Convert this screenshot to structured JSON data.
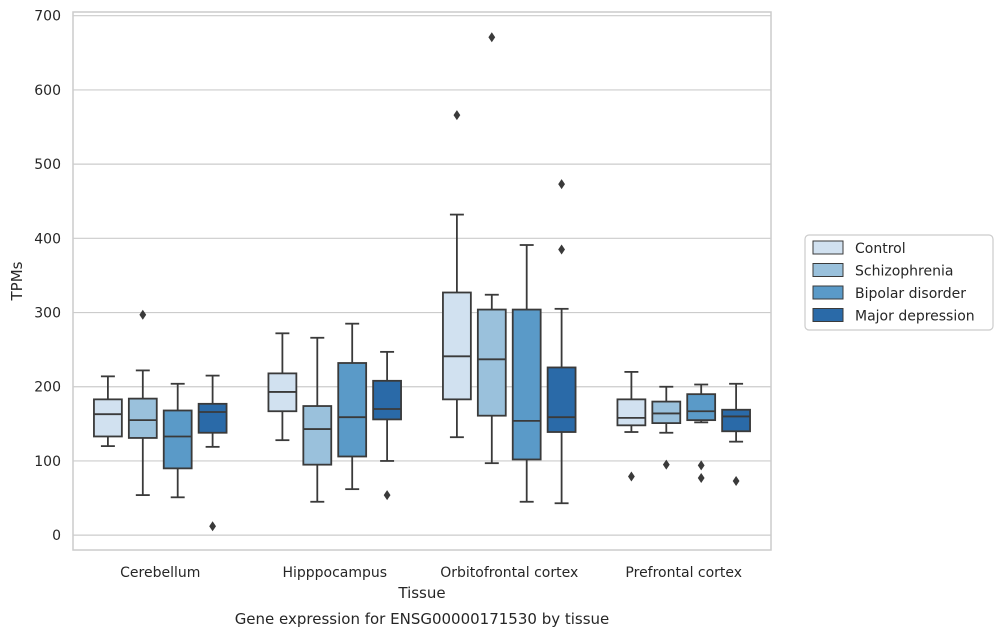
{
  "chart_data": {
    "type": "boxplot",
    "xlabel": "Tissue",
    "ylabel": "TPMs",
    "caption": "Gene expression for ENSG00000171530 by tissue",
    "categories": [
      "Cerebellum",
      "Hipppocampus",
      "Orbitofrontal cortex",
      "Prefrontal cortex"
    ],
    "ylim": [
      -20,
      705
    ],
    "yticks": [
      0,
      100,
      200,
      300,
      400,
      500,
      600,
      700
    ],
    "grid": true,
    "legend_position": "right-outside",
    "series": [
      {
        "name": "Control",
        "color": "#d1e1f0",
        "boxes": [
          {
            "whisker_low": 120,
            "q1": 133,
            "median": 163,
            "q3": 183,
            "whisker_high": 214,
            "outliers": []
          },
          {
            "whisker_low": 128,
            "q1": 167,
            "median": 193,
            "q3": 218,
            "whisker_high": 272,
            "outliers": []
          },
          {
            "whisker_low": 132,
            "q1": 183,
            "median": 241,
            "q3": 327,
            "whisker_high": 432,
            "outliers": [
              566
            ]
          },
          {
            "whisker_low": 139,
            "q1": 148,
            "median": 158,
            "q3": 183,
            "whisker_high": 220,
            "outliers": [
              79
            ]
          }
        ]
      },
      {
        "name": "Schizophrenia",
        "color": "#9ac1dc",
        "boxes": [
          {
            "whisker_low": 54,
            "q1": 131,
            "median": 155,
            "q3": 184,
            "whisker_high": 222,
            "outliers": [
              297
            ]
          },
          {
            "whisker_low": 45,
            "q1": 95,
            "median": 143,
            "q3": 174,
            "whisker_high": 266,
            "outliers": []
          },
          {
            "whisker_low": 97,
            "q1": 161,
            "median": 237,
            "q3": 304,
            "whisker_high": 324,
            "outliers": [
              671
            ]
          },
          {
            "whisker_low": 138,
            "q1": 151,
            "median": 164,
            "q3": 180,
            "whisker_high": 200,
            "outliers": [
              95
            ]
          }
        ]
      },
      {
        "name": "Bipolar disorder",
        "color": "#5a9ac8",
        "boxes": [
          {
            "whisker_low": 51,
            "q1": 90,
            "median": 133,
            "q3": 168,
            "whisker_high": 204,
            "outliers": []
          },
          {
            "whisker_low": 62,
            "q1": 106,
            "median": 159,
            "q3": 232,
            "whisker_high": 285,
            "outliers": []
          },
          {
            "whisker_low": 45,
            "q1": 102,
            "median": 154,
            "q3": 304,
            "whisker_high": 391,
            "outliers": []
          },
          {
            "whisker_low": 152,
            "q1": 155,
            "median": 167,
            "q3": 190,
            "whisker_high": 203,
            "outliers": [
              94,
              77
            ]
          }
        ]
      },
      {
        "name": "Major depression",
        "color": "#2a6aa8",
        "boxes": [
          {
            "whisker_low": 119,
            "q1": 138,
            "median": 166,
            "q3": 177,
            "whisker_high": 215,
            "outliers": [
              12
            ]
          },
          {
            "whisker_low": 100,
            "q1": 156,
            "median": 170,
            "q3": 208,
            "whisker_high": 247,
            "outliers": [
              54
            ]
          },
          {
            "whisker_low": 43,
            "q1": 139,
            "median": 159,
            "q3": 226,
            "whisker_high": 305,
            "outliers": [
              473,
              385
            ]
          },
          {
            "whisker_low": 126,
            "q1": 140,
            "median": 160,
            "q3": 169,
            "whisker_high": 204,
            "outliers": [
              73
            ]
          }
        ]
      }
    ]
  }
}
